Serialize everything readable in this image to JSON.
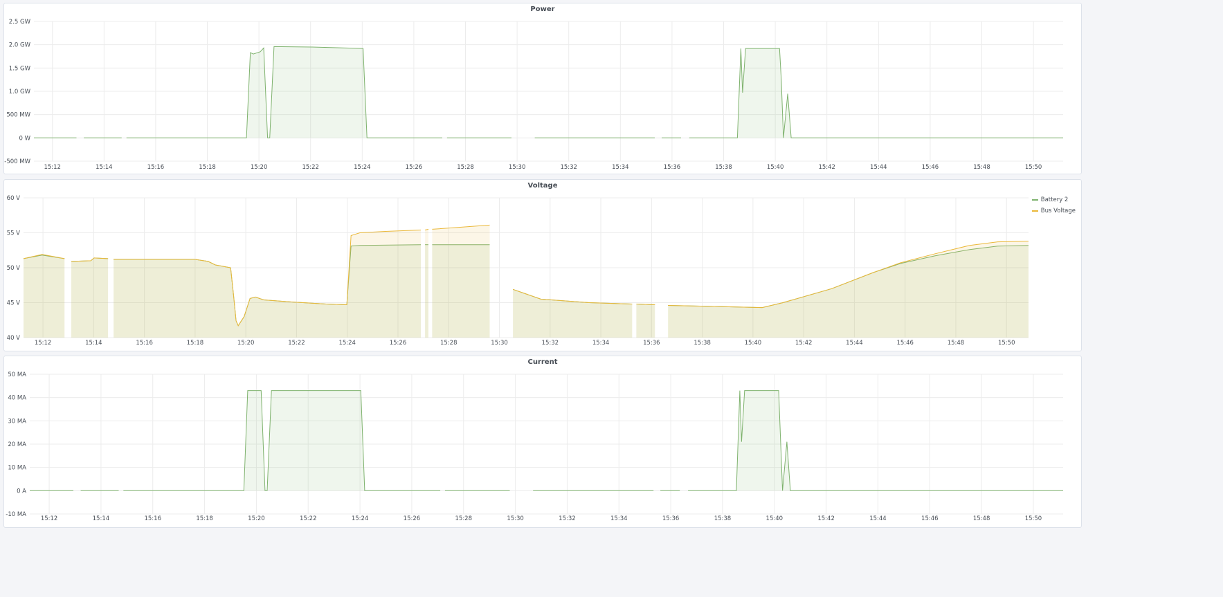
{
  "chart_data": [
    {
      "type": "area",
      "title": "Power",
      "xlim": [
        "15:11:17",
        "15:51:09"
      ],
      "x_ticks": [
        "15:12",
        "15:14",
        "15:16",
        "15:18",
        "15:20",
        "15:22",
        "15:24",
        "15:26",
        "15:28",
        "15:30",
        "15:32",
        "15:34",
        "15:36",
        "15:38",
        "15:40",
        "15:42",
        "15:44",
        "15:46",
        "15:48",
        "15:50"
      ],
      "ylim": [
        -0.5,
        2.5
      ],
      "y_ticks": [
        {
          "v": 2.5,
          "label": "2.5 GW"
        },
        {
          "v": 2.0,
          "label": "2.0 GW"
        },
        {
          "v": 1.5,
          "label": "1.5 GW"
        },
        {
          "v": 1.0,
          "label": "1.0 GW"
        },
        {
          "v": 0.5,
          "label": "500 MW"
        },
        {
          "v": 0,
          "label": "0 W"
        },
        {
          "v": -0.5,
          "label": "-500 MW"
        }
      ],
      "unit": "GW",
      "grid": true,
      "series": [
        {
          "color": "#7eb26d",
          "fill_to": 0,
          "points": [
            [
              "15:11:17",
              0
            ],
            [
              "15:12:56",
              0
            ],
            [
              "15:12:57",
              null
            ],
            [
              "15:13:13",
              0
            ],
            [
              "15:14:41",
              0
            ],
            [
              "15:14:42",
              null
            ],
            [
              "15:14:52",
              0
            ],
            [
              "15:19:31",
              0
            ],
            [
              "15:19:40",
              1.83
            ],
            [
              "15:19:47",
              1.8
            ],
            [
              "15:20:03",
              1.85
            ],
            [
              "15:20:11",
              1.93
            ],
            [
              "15:20:20",
              0
            ],
            [
              "15:20:25",
              0
            ],
            [
              "15:20:35",
              1.96
            ],
            [
              "15:22:04",
              1.95
            ],
            [
              "15:24:02",
              1.92
            ],
            [
              "15:24:11",
              0
            ],
            [
              "15:27:06",
              0
            ],
            [
              "15:27:07",
              null
            ],
            [
              "15:27:17",
              0
            ],
            [
              "15:29:47",
              0
            ],
            [
              "15:29:48",
              null
            ],
            [
              "15:30:41",
              0
            ],
            [
              "15:35:20",
              0
            ],
            [
              "15:35:21",
              null
            ],
            [
              "15:35:36",
              0
            ],
            [
              "15:36:21",
              0
            ],
            [
              "15:36:22",
              null
            ],
            [
              "15:36:40",
              0
            ],
            [
              "15:38:32",
              0
            ],
            [
              "15:38:40",
              1.92
            ],
            [
              "15:38:44",
              0.97
            ],
            [
              "15:38:51",
              1.92
            ],
            [
              "15:40:10",
              1.92
            ],
            [
              "15:40:14",
              1.25
            ],
            [
              "15:40:19",
              0
            ],
            [
              "15:40:29",
              0.95
            ],
            [
              "15:40:37",
              0
            ],
            [
              "15:51:09",
              0
            ]
          ]
        }
      ]
    },
    {
      "type": "area",
      "title": "Voltage",
      "xlim": [
        "15:11:14",
        "15:50:52"
      ],
      "x_ticks": [
        "15:12",
        "15:14",
        "15:16",
        "15:18",
        "15:20",
        "15:22",
        "15:24",
        "15:26",
        "15:28",
        "15:30",
        "15:32",
        "15:34",
        "15:36",
        "15:38",
        "15:40",
        "15:42",
        "15:44",
        "15:46",
        "15:48",
        "15:50"
      ],
      "ylim": [
        40,
        60
      ],
      "y_ticks": [
        {
          "v": 60,
          "label": "60 V"
        },
        {
          "v": 55,
          "label": "55 V"
        },
        {
          "v": 50,
          "label": "50 V"
        },
        {
          "v": 45,
          "label": "45 V"
        },
        {
          "v": 40,
          "label": "40 V"
        }
      ],
      "unit": "V",
      "grid": true,
      "legend": "right",
      "series": [
        {
          "name": "Battery 2",
          "color": "#7eb26d",
          "fill_to": 40,
          "points": [
            [
              "15:11:14",
              51.3
            ],
            [
              "15:11:58",
              51.8
            ],
            [
              "15:12:51",
              51.3
            ],
            [
              "15:12:52",
              null
            ],
            [
              "15:13:07",
              50.9
            ],
            [
              "15:13:53",
              51.0
            ],
            [
              "15:14:01",
              51.4
            ],
            [
              "15:14:34",
              51.3
            ],
            [
              "15:14:35",
              null
            ],
            [
              "15:14:47",
              51.2
            ],
            [
              "15:17:59",
              51.2
            ],
            [
              "15:18:31",
              50.9
            ],
            [
              "15:18:48",
              50.4
            ],
            [
              "15:19:24",
              50.0
            ],
            [
              "15:19:31",
              46.0
            ],
            [
              "15:19:37",
              42.4
            ],
            [
              "15:19:42",
              41.7
            ],
            [
              "15:19:56",
              43.0
            ],
            [
              "15:20:10",
              45.6
            ],
            [
              "15:20:23",
              45.8
            ],
            [
              "15:20:42",
              45.4
            ],
            [
              "15:21:48",
              45.1
            ],
            [
              "15:23:10",
              44.8
            ],
            [
              "15:23:59",
              44.7
            ],
            [
              "15:24:09",
              53.1
            ],
            [
              "15:24:30",
              53.2
            ],
            [
              "15:26:54",
              53.3
            ],
            [
              "15:26:55",
              null
            ],
            [
              "15:27:04",
              53.3
            ],
            [
              "15:27:12",
              53.3
            ],
            [
              "15:27:13",
              null
            ],
            [
              "15:27:21",
              53.3
            ],
            [
              "15:29:37",
              53.3
            ],
            [
              "15:29:38",
              null
            ],
            [
              "15:30:32",
              46.9
            ],
            [
              "15:31:38",
              45.5
            ],
            [
              "15:33:32",
              45.0
            ],
            [
              "15:35:14",
              44.8
            ],
            [
              "15:35:15",
              null
            ],
            [
              "15:35:24",
              44.8
            ],
            [
              "15:36:08",
              44.7
            ],
            [
              "15:36:09",
              null
            ],
            [
              "15:36:39",
              44.6
            ],
            [
              "15:40:22",
              44.3
            ],
            [
              "15:41:11",
              45.0
            ],
            [
              "15:43:06",
              47.0
            ],
            [
              "15:44:44",
              49.3
            ],
            [
              "15:45:49",
              50.6
            ],
            [
              "15:47:11",
              51.7
            ],
            [
              "15:48:33",
              52.6
            ],
            [
              "15:49:39",
              53.1
            ],
            [
              "15:50:52",
              53.2
            ]
          ]
        },
        {
          "name": "Bus Voltage",
          "color": "#eab839",
          "fill_to": 40,
          "points": [
            [
              "15:11:14",
              51.3
            ],
            [
              "15:11:58",
              51.9
            ],
            [
              "15:12:51",
              51.3
            ],
            [
              "15:12:52",
              null
            ],
            [
              "15:13:07",
              50.9
            ],
            [
              "15:13:53",
              51.0
            ],
            [
              "15:14:01",
              51.4
            ],
            [
              "15:14:34",
              51.3
            ],
            [
              "15:14:35",
              null
            ],
            [
              "15:14:47",
              51.2
            ],
            [
              "15:17:59",
              51.2
            ],
            [
              "15:18:31",
              50.9
            ],
            [
              "15:18:48",
              50.4
            ],
            [
              "15:19:24",
              50.0
            ],
            [
              "15:19:31",
              46.0
            ],
            [
              "15:19:37",
              42.4
            ],
            [
              "15:19:42",
              41.7
            ],
            [
              "15:19:56",
              43.0
            ],
            [
              "15:20:10",
              45.6
            ],
            [
              "15:20:23",
              45.8
            ],
            [
              "15:20:42",
              45.4
            ],
            [
              "15:21:48",
              45.1
            ],
            [
              "15:23:10",
              44.8
            ],
            [
              "15:23:59",
              44.7
            ],
            [
              "15:24:09",
              54.6
            ],
            [
              "15:24:30",
              55.0
            ],
            [
              "15:25:30",
              55.2
            ],
            [
              "15:26:54",
              55.4
            ],
            [
              "15:26:55",
              null
            ],
            [
              "15:27:04",
              55.4
            ],
            [
              "15:27:12",
              55.5
            ],
            [
              "15:27:13",
              null
            ],
            [
              "15:27:21",
              55.5
            ],
            [
              "15:28:30",
              55.8
            ],
            [
              "15:29:37",
              56.1
            ],
            [
              "15:29:38",
              null
            ],
            [
              "15:30:32",
              46.9
            ],
            [
              "15:31:38",
              45.5
            ],
            [
              "15:33:32",
              45.0
            ],
            [
              "15:35:14",
              44.8
            ],
            [
              "15:35:15",
              null
            ],
            [
              "15:35:24",
              44.8
            ],
            [
              "15:36:08",
              44.7
            ],
            [
              "15:36:09",
              null
            ],
            [
              "15:36:39",
              44.6
            ],
            [
              "15:40:22",
              44.3
            ],
            [
              "15:41:11",
              45.0
            ],
            [
              "15:43:06",
              47.0
            ],
            [
              "15:44:44",
              49.3
            ],
            [
              "15:45:49",
              50.7
            ],
            [
              "15:47:11",
              52.0
            ],
            [
              "15:48:33",
              53.2
            ],
            [
              "15:49:39",
              53.7
            ],
            [
              "15:50:52",
              53.8
            ]
          ]
        }
      ]
    },
    {
      "type": "area",
      "title": "Current",
      "xlim": [
        "15:11:15",
        "15:51:09"
      ],
      "x_ticks": [
        "15:12",
        "15:14",
        "15:16",
        "15:18",
        "15:20",
        "15:22",
        "15:24",
        "15:26",
        "15:28",
        "15:30",
        "15:32",
        "15:34",
        "15:36",
        "15:38",
        "15:40",
        "15:42",
        "15:44",
        "15:46",
        "15:48",
        "15:50"
      ],
      "ylim": [
        -10,
        50
      ],
      "y_ticks": [
        {
          "v": 50,
          "label": "50 MA"
        },
        {
          "v": 40,
          "label": "40 MA"
        },
        {
          "v": 30,
          "label": "30 MA"
        },
        {
          "v": 20,
          "label": "20 MA"
        },
        {
          "v": 10,
          "label": "10 MA"
        },
        {
          "v": 0,
          "label": "0 A"
        },
        {
          "v": -10,
          "label": "-10 MA"
        }
      ],
      "unit": "MA",
      "grid": true,
      "series": [
        {
          "color": "#7eb26d",
          "fill_to": 0,
          "points": [
            [
              "15:11:15",
              0
            ],
            [
              "15:12:56",
              0
            ],
            [
              "15:12:57",
              null
            ],
            [
              "15:13:13",
              0
            ],
            [
              "15:14:41",
              0
            ],
            [
              "15:14:42",
              null
            ],
            [
              "15:14:52",
              0
            ],
            [
              "15:19:31",
              0
            ],
            [
              "15:19:40",
              43
            ],
            [
              "15:20:11",
              43
            ],
            [
              "15:20:20",
              0
            ],
            [
              "15:20:25",
              0
            ],
            [
              "15:20:35",
              43
            ],
            [
              "15:24:02",
              43
            ],
            [
              "15:24:11",
              0
            ],
            [
              "15:27:06",
              0
            ],
            [
              "15:27:07",
              null
            ],
            [
              "15:27:17",
              0
            ],
            [
              "15:29:47",
              0
            ],
            [
              "15:29:48",
              null
            ],
            [
              "15:30:41",
              0
            ],
            [
              "15:35:20",
              0
            ],
            [
              "15:35:21",
              null
            ],
            [
              "15:35:36",
              0
            ],
            [
              "15:36:21",
              0
            ],
            [
              "15:36:22",
              null
            ],
            [
              "15:36:40",
              0
            ],
            [
              "15:38:32",
              0
            ],
            [
              "15:38:40",
              43
            ],
            [
              "15:38:44",
              21
            ],
            [
              "15:38:51",
              43
            ],
            [
              "15:40:10",
              43
            ],
            [
              "15:40:19",
              0
            ],
            [
              "15:40:29",
              21
            ],
            [
              "15:40:37",
              0
            ],
            [
              "15:51:09",
              0
            ]
          ]
        }
      ]
    }
  ]
}
